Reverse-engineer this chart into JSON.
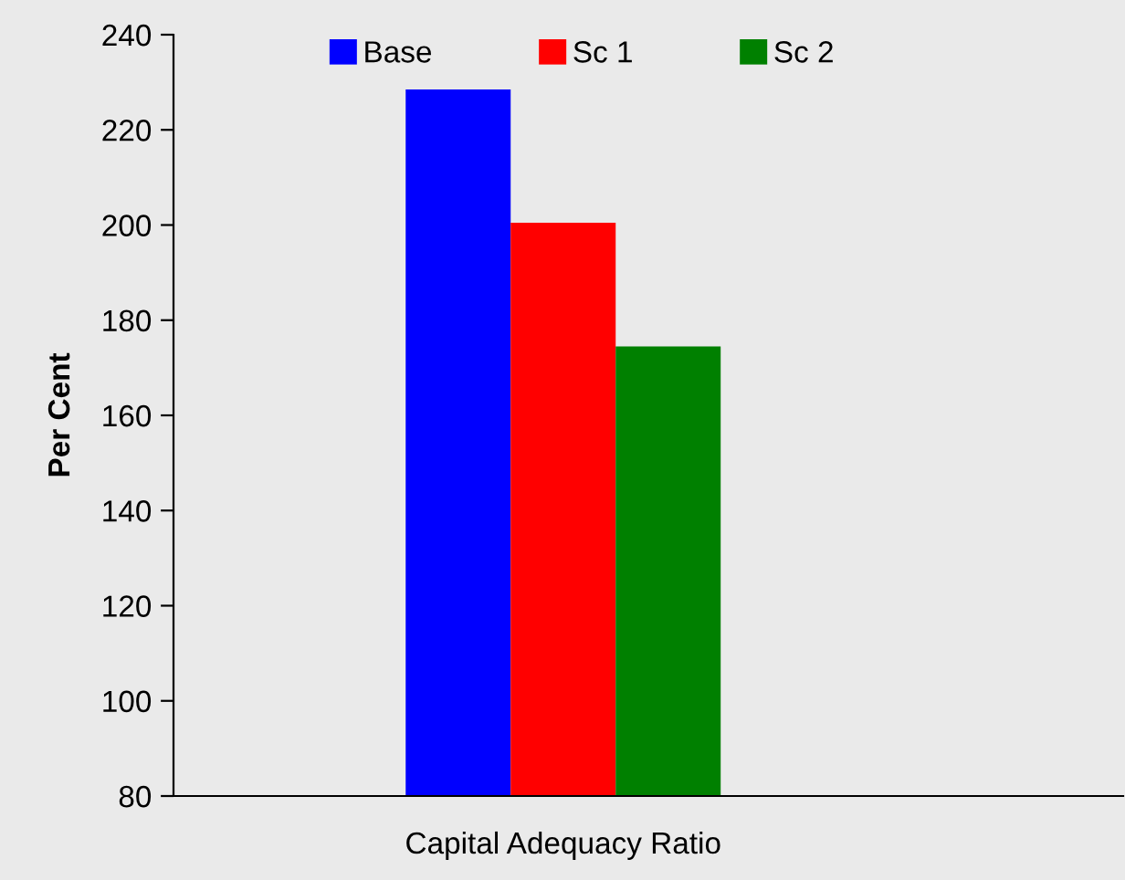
{
  "chart_data": {
    "type": "bar",
    "categories": [
      "Capital Adequacy Ratio"
    ],
    "ylabel": "Per Cent",
    "series": [
      {
        "name": "Base",
        "color": "#0000ff",
        "values": [
          228.5
        ]
      },
      {
        "name": "Sc 1",
        "color": "#ff0000",
        "values": [
          200.5
        ]
      },
      {
        "name": "Sc 2",
        "color": "#008000",
        "values": [
          174.5
        ]
      }
    ],
    "ylim": [
      80,
      240
    ],
    "yticks": [
      80,
      100,
      120,
      140,
      160,
      180,
      200,
      220,
      240
    ],
    "grid": false,
    "legend": "top"
  }
}
